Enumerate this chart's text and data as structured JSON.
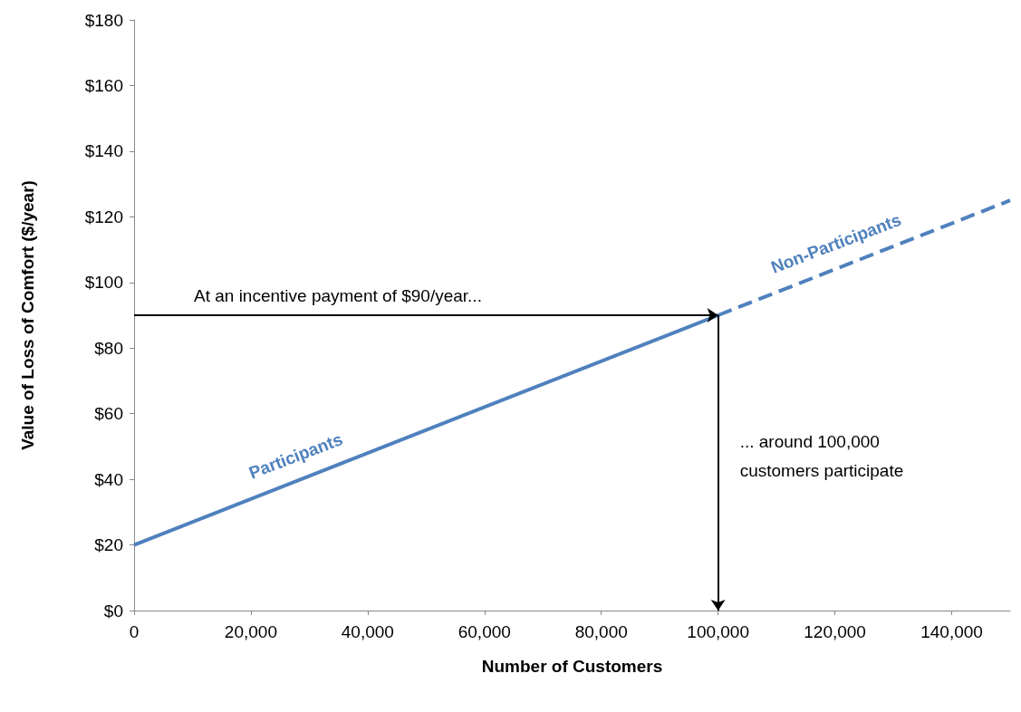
{
  "chart_data": {
    "type": "line",
    "xlabel": "Number of Customers",
    "ylabel": "Value of Loss of Comfort ($/year)",
    "series": [
      {
        "name": "Participants",
        "color": "#4f81bd",
        "line_style": "solid",
        "x": [
          0,
          100000
        ],
        "values": [
          20,
          90
        ]
      },
      {
        "name": "Non-Participants",
        "color": "#4f81bd",
        "line_style": "dashed",
        "x": [
          100000,
          150000
        ],
        "values": [
          90,
          125
        ]
      }
    ],
    "xlim": [
      0,
      150000
    ],
    "xticks": [
      {
        "value": 0,
        "label": "0"
      },
      {
        "value": 20000,
        "label": "20,000"
      },
      {
        "value": 40000,
        "label": "40,000"
      },
      {
        "value": 60000,
        "label": "60,000"
      },
      {
        "value": 80000,
        "label": "80,000"
      },
      {
        "value": 100000,
        "label": "100,000"
      },
      {
        "value": 120000,
        "label": "120,000"
      },
      {
        "value": 140000,
        "label": "140,000"
      }
    ],
    "ylim": [
      0,
      180
    ],
    "yticks": [
      {
        "value": 0,
        "label": "$0"
      },
      {
        "value": 20,
        "label": "$20"
      },
      {
        "value": 40,
        "label": "$40"
      },
      {
        "value": 60,
        "label": "$60"
      },
      {
        "value": 80,
        "label": "$80"
      },
      {
        "value": 100,
        "label": "$100"
      },
      {
        "value": 120,
        "label": "$120"
      },
      {
        "value": 140,
        "label": "$140"
      },
      {
        "value": 160,
        "label": "$160"
      },
      {
        "value": 180,
        "label": "$180"
      }
    ],
    "annotations": [
      "At an incentive payment of $90/year...",
      "... around 100,000\ncustomers participate"
    ],
    "grid": false,
    "legend": false,
    "marker": "none"
  }
}
